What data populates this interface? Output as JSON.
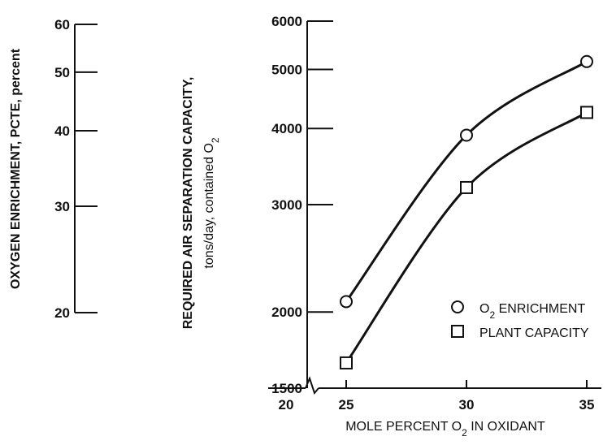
{
  "chart_data": [
    {
      "type": "axis",
      "ylabel": "OXYGEN ENRICHMENT, PCTE, percent",
      "ylim": [
        20,
        60
      ],
      "yscale": "log",
      "yticks": [
        {
          "value": 60,
          "label": "60"
        },
        {
          "value": 50,
          "label": "50"
        },
        {
          "value": 40,
          "label": "40"
        },
        {
          "value": 30,
          "label": "30"
        },
        {
          "value": 20,
          "label": "20"
        }
      ]
    },
    {
      "type": "scatter",
      "ylabel_line1": "REQUIRED AIR SEPARATION CAPACITY,",
      "ylabel_line2": "tons/day, contained O",
      "ylabel_sub": "2",
      "xlabel_main": "MOLE PERCENT O",
      "xlabel_sub": "2",
      "xlabel_tail": " IN OXIDANT",
      "yscale": "log",
      "ylim": [
        1500,
        6000
      ],
      "xlim": [
        20,
        35
      ],
      "xaxis_break": true,
      "xticks": [
        {
          "value": 20,
          "label": "20"
        },
        {
          "value": 25,
          "label": "25"
        },
        {
          "value": 30,
          "label": "30"
        },
        {
          "value": 35,
          "label": "35"
        }
      ],
      "yticks": [
        {
          "value": 6000,
          "label": "6000"
        },
        {
          "value": 5000,
          "label": "5000"
        },
        {
          "value": 4000,
          "label": "4000"
        },
        {
          "value": 3000,
          "label": "3000"
        },
        {
          "value": 2000,
          "label": "2000"
        },
        {
          "value": 1500,
          "label": "1500"
        }
      ],
      "legend_position": "bottom-right",
      "series": [
        {
          "name": "O2 ENRICHMENT",
          "label_main": "O",
          "label_sub": "2",
          "label_tail": " ENRICHMENT",
          "marker": "circle",
          "x": [
            25,
            30,
            35
          ],
          "y": [
            2080,
            3900,
            5150
          ]
        },
        {
          "name": "PLANT CAPACITY",
          "label_main": "PLANT CAPACITY",
          "label_sub": "",
          "label_tail": "",
          "marker": "square",
          "x": [
            25,
            30,
            35
          ],
          "y": [
            1650,
            3200,
            4250
          ]
        }
      ]
    }
  ]
}
